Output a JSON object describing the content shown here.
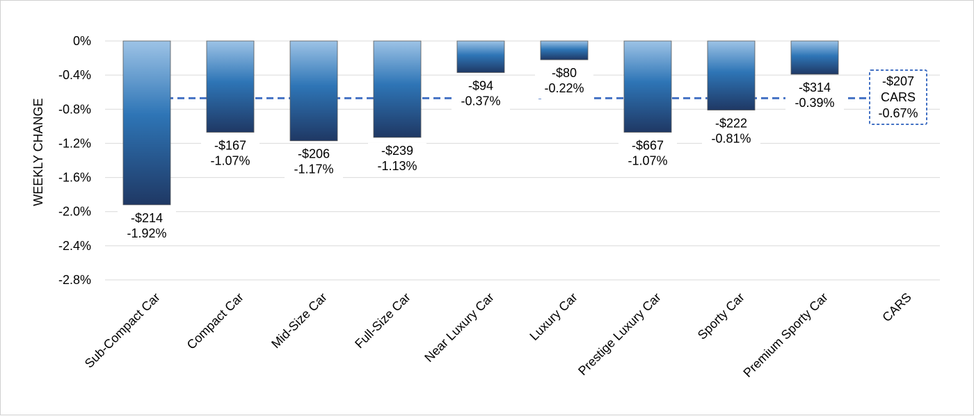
{
  "chart_data": {
    "type": "bar",
    "ylabel": "WEEKLY CHANGE",
    "ylim": [
      -2.8,
      0
    ],
    "yticks": [
      "0%",
      "-0.4%",
      "-0.8%",
      "-1.2%",
      "-1.6%",
      "-2.0%",
      "-2.4%",
      "-2.8%"
    ],
    "ytick_values": [
      0,
      -0.4,
      -0.8,
      -1.2,
      -1.6,
      -2.0,
      -2.4,
      -2.8
    ],
    "grid": true,
    "categories": [
      "Sub-Compact Car",
      "Compact Car",
      "Mid-Size Car",
      "Full-Size Car",
      "Near Luxury Car",
      "Luxury Car",
      "Prestige Luxury Car",
      "Sporty Car",
      "Premium Sporty Car",
      "CARS"
    ],
    "values": [
      -1.92,
      -1.07,
      -1.17,
      -1.13,
      -0.37,
      -0.22,
      -1.07,
      -0.81,
      -0.39,
      null
    ],
    "dollar_labels": [
      "-$214",
      "-$167",
      "-$206",
      "-$239",
      "-$94",
      "-$80",
      "-$667",
      "-$222",
      "-$314",
      "-$207"
    ],
    "percent_labels": [
      "-1.92%",
      "-1.07%",
      "-1.17%",
      "-1.13%",
      "-0.37%",
      "-0.22%",
      "-1.07%",
      "-0.81%",
      "-0.39%",
      "-0.67%"
    ],
    "reference_line": {
      "value": -0.67,
      "label_lines": [
        "-$207",
        "CARS",
        "-0.67%"
      ],
      "style": "dashed",
      "color": "#4472C4"
    },
    "colors": {
      "bar_top": "#9DC3E6",
      "bar_mid": "#2E75B6",
      "bar_bottom": "#1F3864",
      "grid": "#d9d9d9",
      "reference": "#4472C4"
    }
  }
}
